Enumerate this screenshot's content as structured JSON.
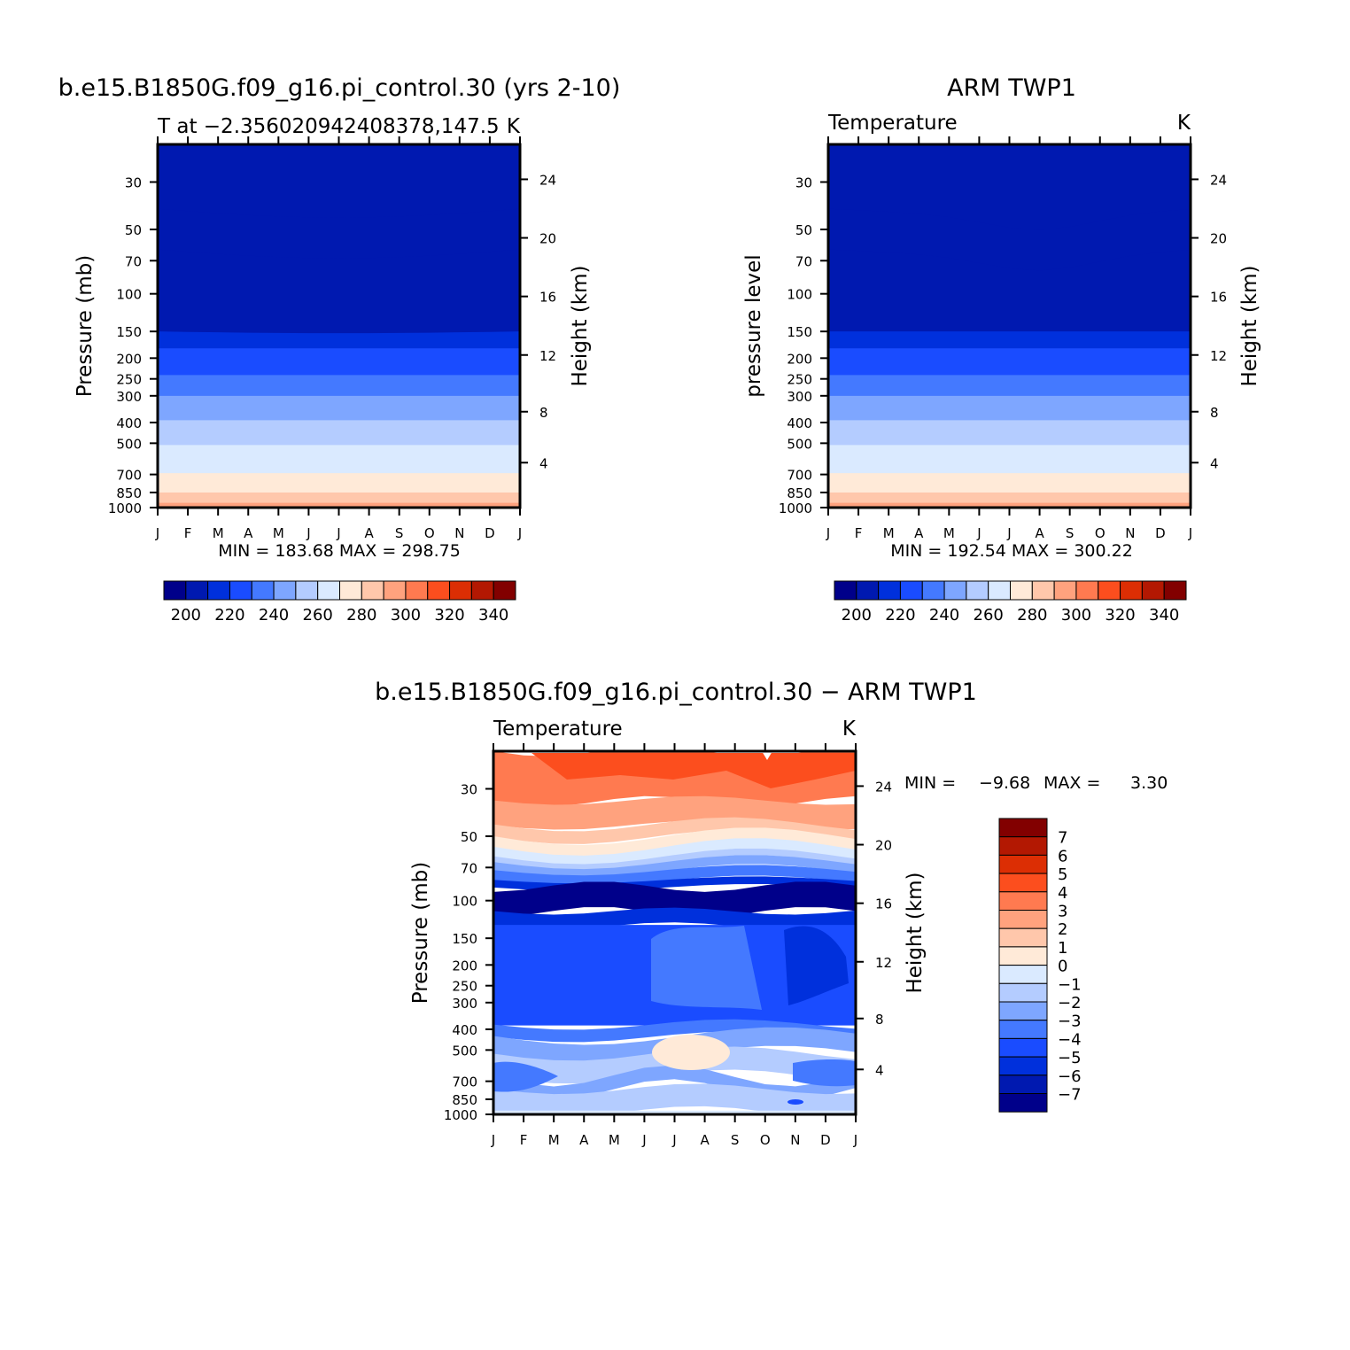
{
  "chart_data": [
    {
      "type": "contour",
      "title": "b.e15.B1850G.f09_g16.pi_control.30 (yrs 2-10)",
      "subtitle_left": "T at −2.356020942408378,147.5",
      "subtitle_right": "K",
      "ylabel": "Pressure (mb)",
      "ylabel_right": "Height (km)",
      "x_ticks": [
        "J",
        "F",
        "M",
        "A",
        "M",
        "J",
        "J",
        "A",
        "S",
        "O",
        "N",
        "D",
        "J"
      ],
      "y_ticks": [
        "30",
        "50",
        "70",
        "100",
        "150",
        "200",
        "250",
        "300",
        "400",
        "500",
        "700",
        "850",
        "1000"
      ],
      "y_ticks_right": [
        "24",
        "20",
        "16",
        "12",
        "8",
        "4"
      ],
      "stats": "MIN = 183.68 MAX = 298.75",
      "colorbar_labels": [
        "200",
        "220",
        "240",
        "260",
        "280",
        "300",
        "320",
        "340"
      ],
      "colorbar_colors": [
        "#00008a",
        "#0019b0",
        "#0030dc",
        "#1a4cff",
        "#4479ff",
        "#7ea6ff",
        "#b4ccff",
        "#daeaff",
        "#ffead8",
        "#ffc7ab",
        "#ffa27e",
        "#ff7a50",
        "#fc4e1e",
        "#dc2e04",
        "#b31802",
        "#820000"
      ],
      "level_boundaries_mb": [
        [
          30,
          40
        ],
        [
          40,
          62
        ],
        [
          62,
          150
        ],
        [
          150,
          180
        ],
        [
          180,
          240
        ],
        [
          240,
          300
        ],
        [
          300,
          390
        ],
        [
          390,
          510
        ],
        [
          510,
          690
        ],
        [
          690,
          850
        ],
        [
          850,
          950
        ],
        [
          950,
          1000
        ]
      ],
      "band_values_K": [
        200,
        205,
        195,
        205,
        215,
        225,
        235,
        245,
        255,
        265,
        275,
        285
      ]
    },
    {
      "type": "contour",
      "title": "ARM TWP1",
      "subtitle_left": "Temperature",
      "subtitle_right": "K",
      "ylabel": "pressure level",
      "ylabel_right": "Height (km)",
      "x_ticks": [
        "J",
        "F",
        "M",
        "A",
        "M",
        "J",
        "J",
        "A",
        "S",
        "O",
        "N",
        "D",
        "J"
      ],
      "y_ticks": [
        "30",
        "50",
        "70",
        "100",
        "150",
        "200",
        "250",
        "300",
        "400",
        "500",
        "700",
        "850",
        "1000"
      ],
      "y_ticks_right": [
        "24",
        "20",
        "16",
        "12",
        "8",
        "4"
      ],
      "stats": "MIN = 192.54 MAX = 300.22",
      "colorbar_labels": [
        "200",
        "220",
        "240",
        "260",
        "280",
        "300",
        "320",
        "340"
      ],
      "colorbar_colors": [
        "#00008a",
        "#0019b0",
        "#0030dc",
        "#1a4cff",
        "#4479ff",
        "#7ea6ff",
        "#b4ccff",
        "#daeaff",
        "#ffead8",
        "#ffc7ab",
        "#ffa27e",
        "#ff7a50",
        "#fc4e1e",
        "#dc2e04",
        "#b31802",
        "#820000"
      ]
    },
    {
      "type": "contour",
      "title": "b.e15.B1850G.f09_g16.pi_control.30 − ARM TWP1",
      "subtitle_left": "Temperature",
      "subtitle_right": "K",
      "ylabel": "Pressure (mb)",
      "ylabel_right": "Height (km)",
      "x_ticks": [
        "J",
        "F",
        "M",
        "A",
        "M",
        "J",
        "J",
        "A",
        "S",
        "O",
        "N",
        "D",
        "J"
      ],
      "y_ticks": [
        "30",
        "50",
        "70",
        "100",
        "150",
        "200",
        "250",
        "300",
        "400",
        "500",
        "700",
        "850",
        "1000"
      ],
      "y_ticks_right": [
        "24",
        "20",
        "16",
        "12",
        "8",
        "4"
      ],
      "stats_min_label": "MIN =",
      "stats_min_value": "−9.68",
      "stats_max_label": "MAX =",
      "stats_max_value": "3.30",
      "colorbar_labels": [
        "7",
        "6",
        "5",
        "4",
        "3",
        "2",
        "1",
        "0",
        "−1",
        "−2",
        "−3",
        "−4",
        "−5",
        "−6",
        "−7"
      ],
      "colorbar_colors": [
        "#820000",
        "#b31802",
        "#dc2e04",
        "#fc4e1e",
        "#ff7a50",
        "#ffa27e",
        "#ffc7ab",
        "#ffead8",
        "#daeaff",
        "#b4ccff",
        "#7ea6ff",
        "#4479ff",
        "#1a4cff",
        "#0030dc",
        "#0019b0",
        "#00008a"
      ]
    }
  ]
}
